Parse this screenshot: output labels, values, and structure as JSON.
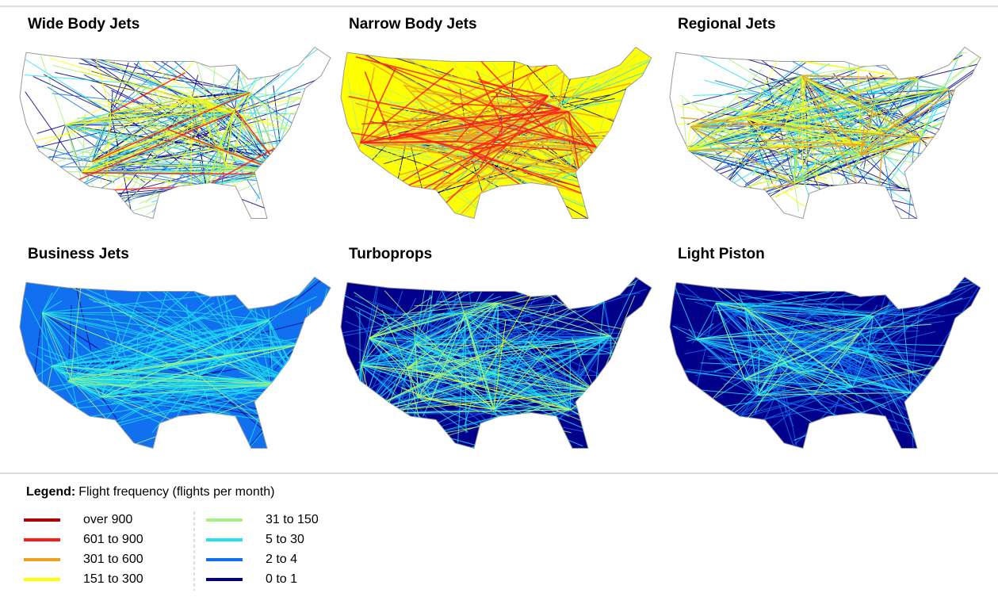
{
  "panels": [
    {
      "title": "Wide Body Jets"
    },
    {
      "title": "Narrow Body Jets"
    },
    {
      "title": "Regional Jets"
    },
    {
      "title": "Business Jets"
    },
    {
      "title": "Turboprops"
    },
    {
      "title": "Light Piston"
    }
  ],
  "legend": {
    "label": "Legend:",
    "title": "Flight frequency (flights per month)",
    "items": [
      {
        "label": "over 900",
        "color": "#b00000"
      },
      {
        "label": "601 to 900",
        "color": "#ff1a1a"
      },
      {
        "label": "301 to 600",
        "color": "#f0a020"
      },
      {
        "label": "151 to 300",
        "color": "#ffff00"
      },
      {
        "label": "31 to 150",
        "color": "#a8f080"
      },
      {
        "label": "5 to 30",
        "color": "#20e0f0"
      },
      {
        "label": "2 to 4",
        "color": "#1070f0"
      },
      {
        "label": "0 to 1",
        "color": "#00008b"
      }
    ]
  }
}
